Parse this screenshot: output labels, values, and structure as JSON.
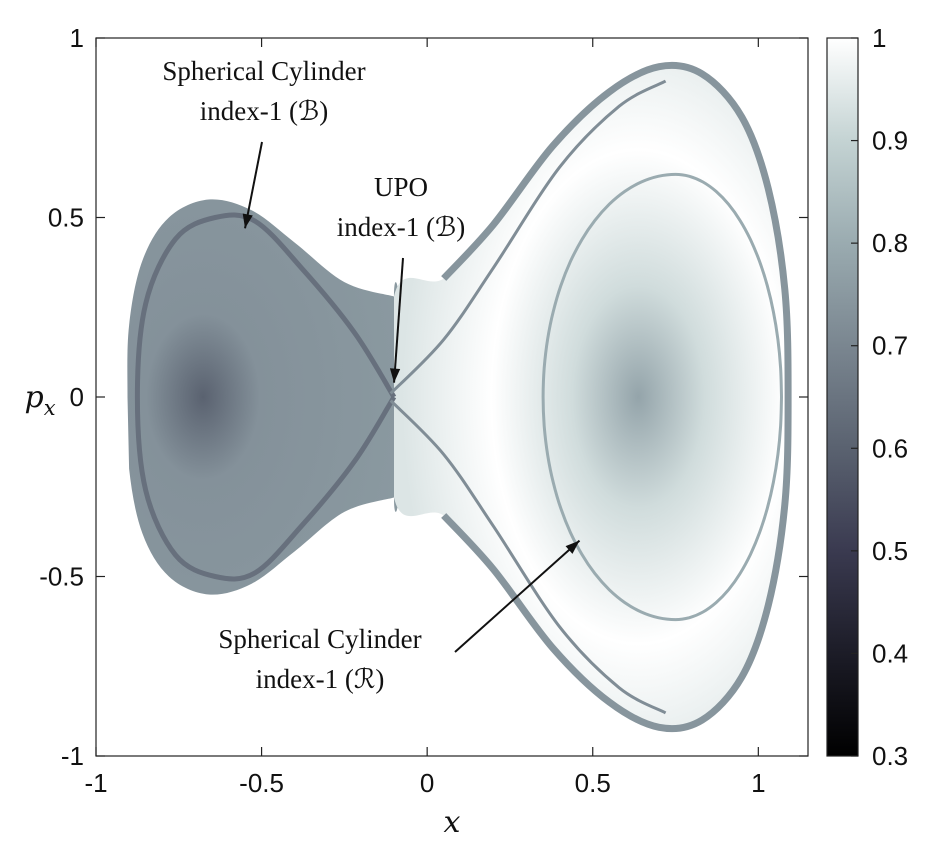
{
  "chart_data": {
    "type": "heatmap",
    "title": "",
    "xlabel": "x",
    "ylabel": "p",
    "ylabel_subscript": "x",
    "xlim": [
      -1,
      1.15
    ],
    "ylim": [
      -1,
      1
    ],
    "xticks": [
      -1,
      -0.5,
      0,
      0.5,
      1
    ],
    "xtick_labels": [
      "-1",
      "-0.5",
      "0",
      "0.5",
      "1"
    ],
    "yticks": [
      1,
      0.5,
      0,
      -0.5,
      -1
    ],
    "ytick_labels": [
      "1",
      "0.5",
      "0",
      "-0.5",
      "-1"
    ],
    "grid": false,
    "colormap": "bone",
    "colorbar": {
      "range": [
        0.3,
        1
      ],
      "ticks": [
        1,
        0.9,
        0.8,
        0.7,
        0.6,
        0.5,
        0.4,
        0.3
      ],
      "tick_labels": [
        "1",
        "0.9",
        "0.8",
        "0.7",
        "0.6",
        "0.5",
        "0.4",
        "0.3"
      ],
      "colors": [
        "#000000",
        "#1c1c27",
        "#3a3a50",
        "#5a6270",
        "#7a8690",
        "#9aabb0",
        "#c4d3d3",
        "#ffffff"
      ]
    },
    "region": {
      "left_well_value": 0.75,
      "left_well_center_value": 0.6,
      "left_well_center": [
        -0.65,
        0
      ],
      "right_well_value": 0.98,
      "right_well_center_value": 0.78,
      "right_well_center": [
        0.75,
        0
      ],
      "saddle": [
        -0.1,
        0
      ],
      "boundary_value": 0.72,
      "inner_orbit_value": 0.8,
      "inner_orbit_center": [
        0.75,
        0
      ]
    },
    "annotations": [
      {
        "lines": [
          "Spherical Cylinder",
          "index-1 (ℬ)"
        ],
        "arrow_to": [
          -0.55,
          0.47
        ]
      },
      {
        "lines": [
          "UPO",
          "index-1 (ℬ)"
        ],
        "arrow_to": [
          -0.1,
          0.04
        ]
      },
      {
        "lines": [
          "Spherical Cylinder",
          "index-1 (ℛ)"
        ],
        "arrow_to": [
          0.46,
          -0.4
        ]
      }
    ]
  }
}
